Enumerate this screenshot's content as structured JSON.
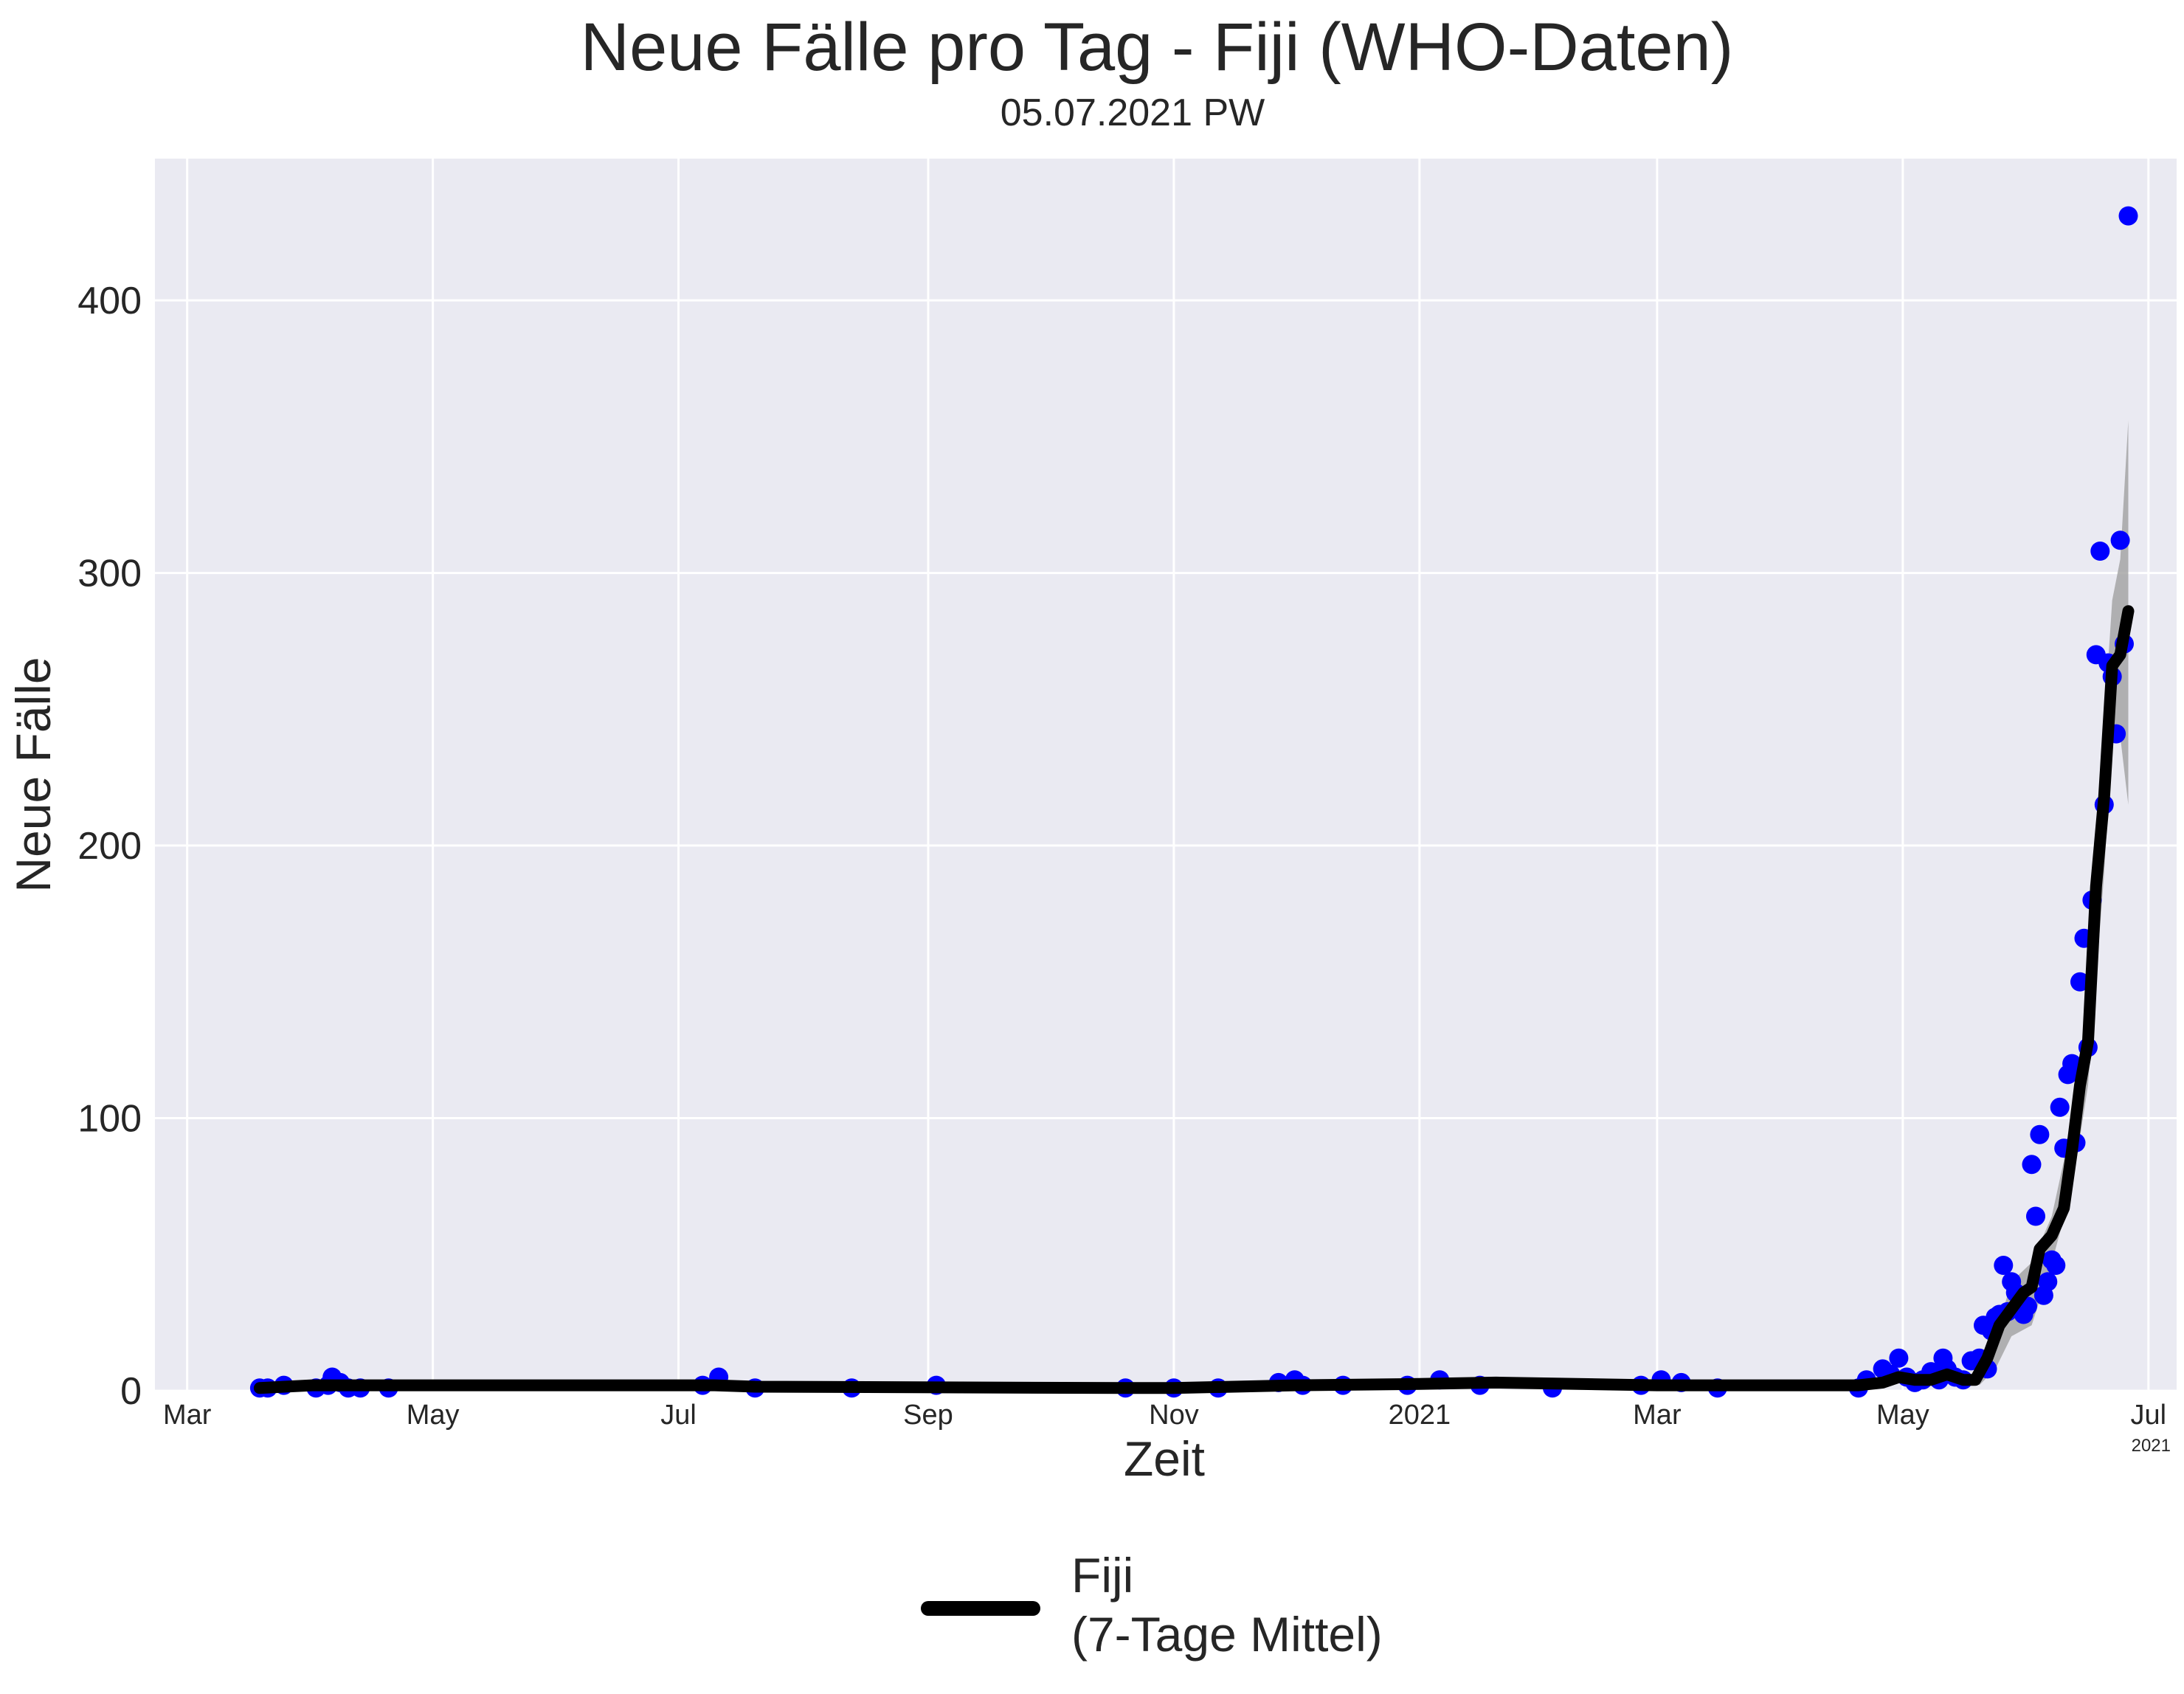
{
  "chart_data": {
    "type": "scatter",
    "title": "Neue Fälle pro Tag - Fiji (WHO-Daten)",
    "subtitle": "05.07.2021 PW",
    "xlabel": "Zeit",
    "ylabel": "Neue Fälle",
    "x_offset_label": "2021",
    "x_tick_labels": [
      {
        "date": "2020-03-01",
        "label": "Mar"
      },
      {
        "date": "2020-05-01",
        "label": "May"
      },
      {
        "date": "2020-07-01",
        "label": "Jul"
      },
      {
        "date": "2020-09-01",
        "label": "Sep"
      },
      {
        "date": "2020-11-01",
        "label": "Nov"
      },
      {
        "date": "2021-01-01",
        "label": "2021"
      },
      {
        "date": "2021-03-01",
        "label": "Mar"
      },
      {
        "date": "2021-05-01",
        "label": "May"
      },
      {
        "date": "2021-07-01",
        "label": "Jul"
      }
    ],
    "y_ticks": [
      0,
      100,
      200,
      300,
      400
    ],
    "xlim": [
      "2020-02-22",
      "2021-07-08"
    ],
    "ylim": [
      0,
      452
    ],
    "grid": true,
    "legend_position": "bottom-center",
    "legend_entries": [
      "Fiji",
      "(7-Tage Mittel)"
    ],
    "colors": {
      "points": "#0000ff",
      "line": "#000000",
      "band": "#a0a0a0",
      "plot_background": "#eaeaf2",
      "grid": "#ffffff"
    },
    "series": [
      {
        "kind": "scatter",
        "points": [
          {
            "x": "2020-03-19",
            "y": 1
          },
          {
            "x": "2020-03-21",
            "y": 1
          },
          {
            "x": "2020-03-25",
            "y": 2
          },
          {
            "x": "2020-04-02",
            "y": 1
          },
          {
            "x": "2020-04-05",
            "y": 2
          },
          {
            "x": "2020-04-06",
            "y": 5
          },
          {
            "x": "2020-04-08",
            "y": 3
          },
          {
            "x": "2020-04-10",
            "y": 1
          },
          {
            "x": "2020-04-13",
            "y": 1
          },
          {
            "x": "2020-04-20",
            "y": 1
          },
          {
            "x": "2020-07-07",
            "y": 2
          },
          {
            "x": "2020-07-11",
            "y": 5
          },
          {
            "x": "2020-07-20",
            "y": 1
          },
          {
            "x": "2020-08-13",
            "y": 1
          },
          {
            "x": "2020-09-03",
            "y": 2
          },
          {
            "x": "2020-10-20",
            "y": 1
          },
          {
            "x": "2020-11-01",
            "y": 1
          },
          {
            "x": "2020-11-12",
            "y": 1
          },
          {
            "x": "2020-11-27",
            "y": 3
          },
          {
            "x": "2020-12-01",
            "y": 4
          },
          {
            "x": "2020-12-03",
            "y": 2
          },
          {
            "x": "2020-12-13",
            "y": 2
          },
          {
            "x": "2020-12-29",
            "y": 2
          },
          {
            "x": "2021-01-06",
            "y": 4
          },
          {
            "x": "2021-01-16",
            "y": 2
          },
          {
            "x": "2021-02-03",
            "y": 1
          },
          {
            "x": "2021-02-25",
            "y": 2
          },
          {
            "x": "2021-03-02",
            "y": 4
          },
          {
            "x": "2021-03-07",
            "y": 3
          },
          {
            "x": "2021-03-16",
            "y": 1
          },
          {
            "x": "2021-04-20",
            "y": 1
          },
          {
            "x": "2021-04-22",
            "y": 4
          },
          {
            "x": "2021-04-26",
            "y": 8
          },
          {
            "x": "2021-04-28",
            "y": 6
          },
          {
            "x": "2021-04-30",
            "y": 12
          },
          {
            "x": "2021-05-02",
            "y": 5
          },
          {
            "x": "2021-05-04",
            "y": 3
          },
          {
            "x": "2021-05-06",
            "y": 4
          },
          {
            "x": "2021-05-08",
            "y": 7
          },
          {
            "x": "2021-05-10",
            "y": 4
          },
          {
            "x": "2021-05-11",
            "y": 12
          },
          {
            "x": "2021-05-12",
            "y": 8
          },
          {
            "x": "2021-05-14",
            "y": 5
          },
          {
            "x": "2021-05-16",
            "y": 4
          },
          {
            "x": "2021-05-18",
            "y": 11
          },
          {
            "x": "2021-05-20",
            "y": 12
          },
          {
            "x": "2021-05-21",
            "y": 24
          },
          {
            "x": "2021-05-22",
            "y": 8
          },
          {
            "x": "2021-05-23",
            "y": 22
          },
          {
            "x": "2021-05-24",
            "y": 27
          },
          {
            "x": "2021-05-25",
            "y": 28
          },
          {
            "x": "2021-05-26",
            "y": 46
          },
          {
            "x": "2021-05-27",
            "y": 29
          },
          {
            "x": "2021-05-28",
            "y": 40
          },
          {
            "x": "2021-05-29",
            "y": 36
          },
          {
            "x": "2021-05-30",
            "y": 32
          },
          {
            "x": "2021-05-31",
            "y": 28
          },
          {
            "x": "2021-06-01",
            "y": 31
          },
          {
            "x": "2021-06-02",
            "y": 83
          },
          {
            "x": "2021-06-03",
            "y": 64
          },
          {
            "x": "2021-06-04",
            "y": 94
          },
          {
            "x": "2021-06-05",
            "y": 35
          },
          {
            "x": "2021-06-06",
            "y": 40
          },
          {
            "x": "2021-06-07",
            "y": 48
          },
          {
            "x": "2021-06-08",
            "y": 46
          },
          {
            "x": "2021-06-09",
            "y": 104
          },
          {
            "x": "2021-06-10",
            "y": 89
          },
          {
            "x": "2021-06-11",
            "y": 116
          },
          {
            "x": "2021-06-12",
            "y": 120
          },
          {
            "x": "2021-06-13",
            "y": 91
          },
          {
            "x": "2021-06-14",
            "y": 150
          },
          {
            "x": "2021-06-15",
            "y": 166
          },
          {
            "x": "2021-06-16",
            "y": 126
          },
          {
            "x": "2021-06-17",
            "y": 180
          },
          {
            "x": "2021-06-18",
            "y": 270
          },
          {
            "x": "2021-06-19",
            "y": 308
          },
          {
            "x": "2021-06-20",
            "y": 215
          },
          {
            "x": "2021-06-21",
            "y": 267
          },
          {
            "x": "2021-06-22",
            "y": 262
          },
          {
            "x": "2021-06-23",
            "y": 241
          },
          {
            "x": "2021-06-24",
            "y": 312
          },
          {
            "x": "2021-06-25",
            "y": 274
          },
          {
            "x": "2021-06-26",
            "y": 431
          }
        ]
      },
      {
        "kind": "line",
        "name": "Fiji\n(7-Tage Mittel)",
        "points": [
          {
            "x": "2020-03-19",
            "y": 1
          },
          {
            "x": "2020-04-01",
            "y": 2
          },
          {
            "x": "2020-04-15",
            "y": 2
          },
          {
            "x": "2020-06-01",
            "y": 2
          },
          {
            "x": "2020-07-10",
            "y": 2
          },
          {
            "x": "2020-07-20",
            "y": 1.5
          },
          {
            "x": "2020-10-20",
            "y": 1
          },
          {
            "x": "2020-11-01",
            "y": 1
          },
          {
            "x": "2020-12-01",
            "y": 2
          },
          {
            "x": "2021-01-01",
            "y": 2.5
          },
          {
            "x": "2021-01-20",
            "y": 3
          },
          {
            "x": "2021-03-01",
            "y": 2
          },
          {
            "x": "2021-04-20",
            "y": 2
          },
          {
            "x": "2021-04-26",
            "y": 3
          },
          {
            "x": "2021-04-30",
            "y": 5
          },
          {
            "x": "2021-05-04",
            "y": 4
          },
          {
            "x": "2021-05-08",
            "y": 4
          },
          {
            "x": "2021-05-12",
            "y": 6
          },
          {
            "x": "2021-05-16",
            "y": 4
          },
          {
            "x": "2021-05-19",
            "y": 4
          },
          {
            "x": "2021-05-22",
            "y": 12
          },
          {
            "x": "2021-05-25",
            "y": 24
          },
          {
            "x": "2021-05-28",
            "y": 30
          },
          {
            "x": "2021-05-31",
            "y": 36
          },
          {
            "x": "2021-06-02",
            "y": 38
          },
          {
            "x": "2021-06-04",
            "y": 52
          },
          {
            "x": "2021-06-07",
            "y": 57
          },
          {
            "x": "2021-06-10",
            "y": 67
          },
          {
            "x": "2021-06-12",
            "y": 88
          },
          {
            "x": "2021-06-14",
            "y": 112
          },
          {
            "x": "2021-06-16",
            "y": 128
          },
          {
            "x": "2021-06-18",
            "y": 185
          },
          {
            "x": "2021-06-20",
            "y": 218
          },
          {
            "x": "2021-06-22",
            "y": 266
          },
          {
            "x": "2021-06-24",
            "y": 270
          },
          {
            "x": "2021-06-26",
            "y": 286
          }
        ]
      }
    ],
    "band": {
      "kind": "area",
      "upper": [
        {
          "x": "2021-05-20",
          "y": 6
        },
        {
          "x": "2021-05-24",
          "y": 20
        },
        {
          "x": "2021-05-28",
          "y": 40
        },
        {
          "x": "2021-06-02",
          "y": 47
        },
        {
          "x": "2021-06-07",
          "y": 64
        },
        {
          "x": "2021-06-12",
          "y": 98
        },
        {
          "x": "2021-06-16",
          "y": 142
        },
        {
          "x": "2021-06-20",
          "y": 245
        },
        {
          "x": "2021-06-22",
          "y": 290
        },
        {
          "x": "2021-06-24",
          "y": 305
        },
        {
          "x": "2021-06-26",
          "y": 356
        }
      ],
      "lower": [
        {
          "x": "2021-06-26",
          "y": 215
        },
        {
          "x": "2021-06-24",
          "y": 240
        },
        {
          "x": "2021-06-22",
          "y": 240
        },
        {
          "x": "2021-06-20",
          "y": 190
        },
        {
          "x": "2021-06-16",
          "y": 112
        },
        {
          "x": "2021-06-12",
          "y": 74
        },
        {
          "x": "2021-06-07",
          "y": 47
        },
        {
          "x": "2021-06-02",
          "y": 24
        },
        {
          "x": "2021-05-28",
          "y": 20
        },
        {
          "x": "2021-05-24",
          "y": 8
        },
        {
          "x": "2021-05-20",
          "y": 2
        }
      ]
    }
  }
}
